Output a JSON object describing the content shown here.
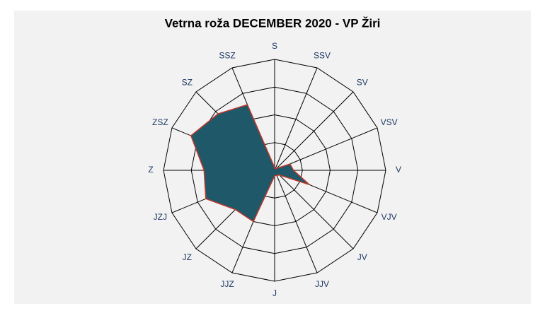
{
  "chart_data": {
    "type": "radar",
    "title": "Vetrna roža DECEMBER 2020 - VP Žiri",
    "categories": [
      "S",
      "SSV",
      "SV",
      "VSV",
      "V",
      "VJV",
      "JV",
      "JJV",
      "J",
      "JJZ",
      "JZ",
      "JZJ",
      "Z",
      "ZSZ",
      "SZ",
      "SSZ"
    ],
    "values": [
      0.5,
      0.3,
      0.5,
      3,
      3.4,
      6.8,
      1.2,
      1,
      1,
      10,
      10,
      13.4,
      12.7,
      16.3,
      14.4,
      12.8
    ],
    "color": "#1f5868",
    "line_color": "#c0392b",
    "ylim": [
      0,
      20
    ],
    "yticks": [
      5,
      10,
      15,
      20
    ],
    "grid": true
  }
}
